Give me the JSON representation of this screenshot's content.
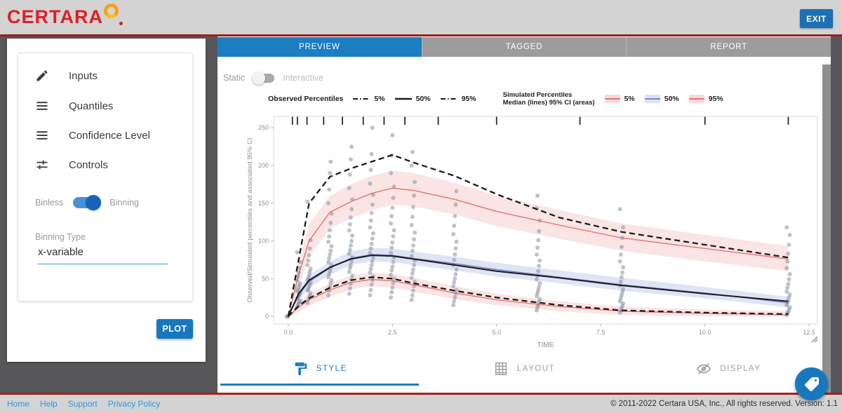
{
  "header": {
    "logo_text": "CERTARA",
    "exit_label": "EXIT"
  },
  "tabs": [
    {
      "label": "PREVIEW",
      "active": true
    },
    {
      "label": "TAGGED",
      "active": false
    },
    {
      "label": "REPORT",
      "active": false
    }
  ],
  "sidebar": {
    "items": [
      {
        "label": "Inputs",
        "icon": "pencil-icon"
      },
      {
        "label": "Quantiles",
        "icon": "list-icon"
      },
      {
        "label": "Confidence Level",
        "icon": "list-icon"
      },
      {
        "label": "Controls",
        "icon": "tune-icon"
      }
    ],
    "bin_toggle": {
      "left": "Binless",
      "right": "Binning",
      "value": "Binning"
    },
    "binning_type": {
      "label": "Binning Type",
      "value": "x-variable"
    },
    "plot_button": "PLOT"
  },
  "preview": {
    "mode_toggle": {
      "left": "Static",
      "right": "Interactive",
      "value": "Static"
    },
    "legend": {
      "observed_title": "Observed Percentiles",
      "observed": [
        {
          "label": "5%",
          "dash": "dash-dot"
        },
        {
          "label": "50%",
          "dash": "solid"
        },
        {
          "label": "95%",
          "dash": "dash-dot"
        }
      ],
      "simulated_title_line1": "Simulated Percentiles",
      "simulated_title_line2": "Median (lines) 95% CI (areas)",
      "simulated": [
        {
          "label": "5%",
          "line_color": "#e57373",
          "fill_color": "#f7dada"
        },
        {
          "label": "50%",
          "line_color": "#7986cb",
          "fill_color": "#dde2f5"
        },
        {
          "label": "95%",
          "line_color": "#e57373",
          "fill_color": "#f7dada"
        }
      ]
    },
    "bottom_tabs": [
      {
        "label": "STYLE",
        "icon": "paint-roller-icon",
        "active": true
      },
      {
        "label": "LAYOUT",
        "icon": "grid-icon",
        "active": false
      },
      {
        "label": "DISPLAY",
        "icon": "eye-off-icon",
        "active": false
      }
    ]
  },
  "chart_data": {
    "type": "line",
    "title": "",
    "xlabel": "TIME",
    "ylabel": "Observed/Simulated percentiles and associated 95% CI",
    "xlim": [
      -0.35,
      12.7
    ],
    "ylim": [
      -10,
      265
    ],
    "xticks": [
      0,
      2.5,
      5,
      7.5,
      10,
      12.5
    ],
    "xtick_labels": [
      "0.0",
      "2.5",
      "5.0",
      "7.5",
      "10.0",
      "12.5"
    ],
    "yticks": [
      0,
      50,
      100,
      150,
      200,
      250
    ],
    "grid": false,
    "legend_position": "top",
    "rug_ticks_t": [
      0.1,
      0.22,
      0.45,
      0.85,
      1.3,
      1.8,
      2.3,
      2.8,
      3.6,
      5.0,
      7.0,
      10.0,
      12.0
    ],
    "x": [
      0,
      0.25,
      0.5,
      1,
      1.5,
      2,
      2.5,
      3,
      4,
      5,
      6.5,
      8,
      10,
      12
    ],
    "series": [
      {
        "name": "observed-5",
        "style": "dashed-black",
        "values": [
          0,
          14,
          24,
          38,
          48,
          52,
          50,
          44,
          34,
          25,
          15,
          8,
          5,
          3
        ]
      },
      {
        "name": "observed-50",
        "style": "solid-black",
        "values": [
          0,
          30,
          48,
          65,
          76,
          81,
          80,
          76,
          68,
          60,
          51,
          41,
          30,
          20
        ]
      },
      {
        "name": "observed-95",
        "style": "dashed-black",
        "values": [
          0,
          75,
          150,
          185,
          196,
          205,
          214,
          204,
          186,
          162,
          131,
          112,
          95,
          78
        ]
      },
      {
        "name": "simulated-5-median",
        "style": "red",
        "color": "#e57373",
        "fill": "rgba(231,130,130,0.22)",
        "values": [
          0,
          12,
          22,
          35,
          45,
          49,
          47,
          42,
          31,
          22,
          13,
          7,
          4,
          2
        ],
        "ci_lo": [
          0,
          6,
          14,
          26,
          36,
          40,
          38,
          33,
          23,
          15,
          7,
          2,
          0,
          0
        ],
        "ci_hi": [
          0,
          19,
          30,
          44,
          54,
          58,
          56,
          51,
          40,
          30,
          20,
          13,
          9,
          7
        ]
      },
      {
        "name": "simulated-50-median",
        "style": "blue",
        "color": "#6f7fc4",
        "fill": "rgba(110,130,210,0.22)",
        "values": [
          0,
          28,
          46,
          64,
          77,
          82,
          81,
          77,
          70,
          62,
          52,
          42,
          31,
          18
        ],
        "ci_lo": [
          0,
          22,
          38,
          55,
          68,
          73,
          72,
          68,
          61,
          53,
          44,
          34,
          24,
          12
        ],
        "ci_hi": [
          0,
          35,
          55,
          73,
          86,
          91,
          90,
          86,
          79,
          71,
          61,
          51,
          39,
          26
        ]
      },
      {
        "name": "simulated-95-median",
        "style": "red",
        "color": "#e57373",
        "fill": "rgba(231,130,130,0.22)",
        "values": [
          0,
          55,
          100,
          138,
          152,
          163,
          170,
          167,
          155,
          139,
          121,
          104,
          90,
          76
        ],
        "ci_lo": [
          0,
          40,
          80,
          116,
          130,
          141,
          148,
          146,
          135,
          120,
          103,
          87,
          73,
          60
        ],
        "ci_hi": [
          0,
          72,
          122,
          160,
          175,
          186,
          193,
          190,
          177,
          160,
          141,
          123,
          108,
          93
        ]
      }
    ],
    "scatter": [
      {
        "t": 0,
        "values": [
          0,
          0,
          0
        ]
      },
      {
        "t": 0.25,
        "values": [
          12,
          15,
          17,
          19,
          21,
          23,
          25,
          27,
          29,
          31,
          33,
          35,
          38,
          41,
          44,
          48,
          53,
          58,
          64,
          72,
          85
        ]
      },
      {
        "t": 0.5,
        "values": [
          18,
          22,
          25,
          28,
          31,
          34,
          36,
          39,
          42,
          45,
          48,
          51,
          55,
          59,
          63,
          68,
          74,
          81,
          90,
          101,
          152
        ]
      },
      {
        "t": 1,
        "values": [
          28,
          34,
          39,
          44,
          48,
          52,
          56,
          60,
          64,
          68,
          72,
          77,
          82,
          87,
          93,
          99,
          106,
          114,
          124,
          136,
          150,
          168,
          190,
          205
        ]
      },
      {
        "t": 1.5,
        "values": [
          30,
          37,
          43,
          49,
          54,
          59,
          64,
          68,
          73,
          78,
          83,
          88,
          94,
          100,
          107,
          114,
          122,
          131,
          142,
          155,
          170,
          188,
          208,
          225
        ]
      },
      {
        "t": 2,
        "values": [
          28,
          35,
          42,
          48,
          53,
          58,
          63,
          68,
          73,
          78,
          84,
          90,
          96,
          103,
          110,
          118,
          127,
          137,
          148,
          161,
          176,
          194,
          215,
          250
        ]
      },
      {
        "t": 2.5,
        "values": [
          25,
          32,
          38,
          44,
          50,
          55,
          61,
          66,
          72,
          78,
          84,
          91,
          98,
          106,
          114,
          123,
          133,
          144,
          157,
          172,
          190,
          213,
          240
        ]
      },
      {
        "t": 3,
        "values": [
          22,
          28,
          34,
          40,
          46,
          51,
          57,
          62,
          68,
          74,
          80,
          87,
          94,
          102,
          111,
          121,
          132,
          145,
          160,
          178,
          200,
          218
        ]
      },
      {
        "t": 4,
        "values": [
          15,
          20,
          25,
          30,
          35,
          40,
          45,
          50,
          56,
          62,
          68,
          75,
          82,
          90,
          99,
          109,
          120,
          133,
          148,
          166
        ]
      },
      {
        "t": 6,
        "values": [
          8,
          12,
          15,
          19,
          23,
          27,
          31,
          35,
          39,
          44,
          49,
          54,
          60,
          67,
          74,
          82,
          91,
          101,
          113,
          127,
          143,
          160
        ]
      },
      {
        "t": 8,
        "values": [
          5,
          8,
          11,
          14,
          17,
          20,
          24,
          28,
          32,
          36,
          41,
          46,
          52,
          58,
          65,
          73,
          82,
          92,
          104,
          118,
          142
        ]
      },
      {
        "t": 12,
        "values": [
          2,
          4,
          6,
          9,
          12,
          15,
          18,
          21,
          25,
          29,
          33,
          38,
          43,
          49,
          56,
          64,
          73,
          83,
          95,
          108,
          118
        ]
      }
    ],
    "scatter_color": "#7e8798"
  },
  "footer": {
    "links": [
      "Home",
      "Help",
      "Support",
      "Privacy Policy"
    ],
    "copyright": "© 2011-2022 Certara USA, Inc., All rights reserved. Version: 1.1"
  },
  "colors": {
    "accent": "#1b7ec2",
    "button_blue": "#1878be",
    "logo_red": "#da2128",
    "rule_red": "#9d1c20",
    "outer_bg": "#58585a",
    "bar_bg": "#d3d3d3",
    "tab_inactive": "#9c9c9c"
  }
}
